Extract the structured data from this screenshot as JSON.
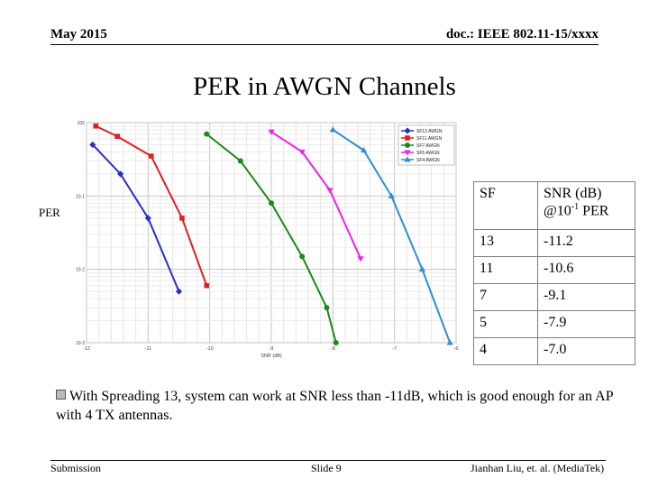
{
  "header": {
    "date": "May 2015",
    "doc": "doc.: IEEE 802.11-15/xxxx"
  },
  "title": "PER in AWGN Channels",
  "ylabel_outer": "PER",
  "chart_data": {
    "type": "line",
    "x_label": "SNR (dB)",
    "y_scale": "log",
    "xlim": [
      -12,
      -6
    ],
    "ylim": [
      0.001,
      1
    ],
    "x_ticks": [
      "-12",
      "-11",
      "-10",
      "-9",
      "-8",
      "-7",
      "-6"
    ],
    "y_ticks": [
      "10^0",
      "10^-1",
      "10^-2",
      "10^-3"
    ],
    "grid": true,
    "legend_position": "top-right",
    "series": [
      {
        "name": "SF13 AWGN",
        "color": "#2b2fc4",
        "marker": "diamond",
        "x": [
          -11.9,
          -11.45,
          -11.0,
          -10.5
        ],
        "y": [
          0.5,
          0.2,
          0.05,
          0.005
        ]
      },
      {
        "name": "SF11 AWGN",
        "color": "#e02020",
        "marker": "square",
        "x": [
          -11.85,
          -11.5,
          -10.95,
          -10.45,
          -10.05
        ],
        "y": [
          0.9,
          0.65,
          0.35,
          0.05,
          0.006
        ]
      },
      {
        "name": "SF7 AWGN",
        "color": "#1a8a1a",
        "marker": "circle",
        "x": [
          -10.05,
          -9.5,
          -9.0,
          -8.5,
          -8.1,
          -7.95
        ],
        "y": [
          0.7,
          0.3,
          0.08,
          0.015,
          0.003,
          0.001
        ]
      },
      {
        "name": "SF5 AWGN",
        "color": "#f020f0",
        "marker": "triangle-down",
        "x": [
          -9.0,
          -8.5,
          -8.05,
          -7.55
        ],
        "y": [
          0.75,
          0.4,
          0.12,
          0.014
        ]
      },
      {
        "name": "SF4 AWGN",
        "color": "#2e8fd0",
        "marker": "triangle-up",
        "x": [
          -8.0,
          -7.5,
          -7.05,
          -6.55,
          -6.1
        ],
        "y": [
          0.8,
          0.42,
          0.1,
          0.01,
          0.001
        ]
      }
    ]
  },
  "table": {
    "header": {
      "sf": "SF",
      "snr": "SNR (dB)",
      "at": "@10",
      "exp": "-1",
      "per": " PER"
    },
    "rows": [
      {
        "sf": "13",
        "snr": "-11.2"
      },
      {
        "sf": "11",
        "snr": "-10.6"
      },
      {
        "sf": "7",
        "snr": "-9.1"
      },
      {
        "sf": "5",
        "snr": "-7.9"
      },
      {
        "sf": "4",
        "snr": "-7.0"
      }
    ]
  },
  "bullet": "With Spreading 13, system can work at SNR less than -11dB, which is good enough for an AP with 4 TX antennas.",
  "footer": {
    "left": "Submission",
    "center": "Slide 9",
    "right": "Jianhan Liu, et. al. (MediaTek)"
  }
}
